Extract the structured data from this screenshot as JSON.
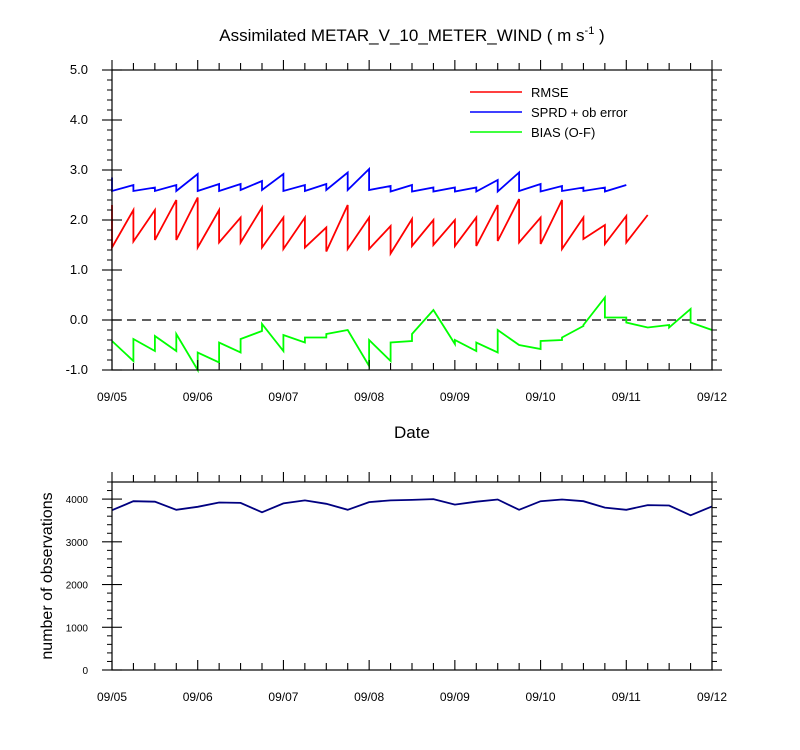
{
  "colors": {
    "rmse": "#ff0000",
    "sprd": "#0000ff",
    "bias": "#00ff00",
    "obs": "#000080",
    "axis": "#000000"
  },
  "chart_data": [
    {
      "type": "line",
      "title": "Assimilated METAR_V_10_METER_WIND ( m s",
      "title_sup": "-1",
      "title_end": " )",
      "xlabel": "Date",
      "ylabel": "",
      "ylim": [
        -1.0,
        5.0
      ],
      "xlim": [
        0,
        7
      ],
      "yticks": [
        -1.0,
        0.0,
        1.0,
        2.0,
        3.0,
        4.0,
        5.0
      ],
      "ytick_labels": [
        "-1.0",
        "0.0",
        "1.0",
        "2.0",
        "3.0",
        "4.0",
        "5.0"
      ],
      "xticks": [
        0,
        1,
        2,
        3,
        4,
        5,
        6,
        7
      ],
      "xtick_labels": [
        "09/05",
        "09/06",
        "09/07",
        "09/08",
        "09/09",
        "09/10",
        "09/11",
        "09/12"
      ],
      "legend": [
        "RMSE",
        "SPRD + ob error",
        "BIAS (O-F)"
      ],
      "legend_position": "top-right",
      "zero_line": 0.0,
      "series": [
        {
          "name": "RMSE",
          "color_key": "rmse",
          "points": [
            [
              0.0,
              2.3
            ],
            [
              0.0,
              1.45
            ],
            [
              0.25,
              2.2
            ],
            [
              0.25,
              1.57
            ],
            [
              0.5,
              2.2
            ],
            [
              0.5,
              1.6
            ],
            [
              0.75,
              2.4
            ],
            [
              0.75,
              1.6
            ],
            [
              1.0,
              2.45
            ],
            [
              1.0,
              1.45
            ],
            [
              1.25,
              2.2
            ],
            [
              1.25,
              1.55
            ],
            [
              1.5,
              2.05
            ],
            [
              1.5,
              1.55
            ],
            [
              1.75,
              2.25
            ],
            [
              1.75,
              1.45
            ],
            [
              2.0,
              2.05
            ],
            [
              2.0,
              1.42
            ],
            [
              2.25,
              2.05
            ],
            [
              2.25,
              1.45
            ],
            [
              2.5,
              1.85
            ],
            [
              2.5,
              1.37
            ],
            [
              2.75,
              2.3
            ],
            [
              2.75,
              1.42
            ],
            [
              3.0,
              2.05
            ],
            [
              3.0,
              1.42
            ],
            [
              3.25,
              1.88
            ],
            [
              3.25,
              1.33
            ],
            [
              3.5,
              2.02
            ],
            [
              3.5,
              1.48
            ],
            [
              3.75,
              2.0
            ],
            [
              3.75,
              1.5
            ],
            [
              4.0,
              2.0
            ],
            [
              4.0,
              1.48
            ],
            [
              4.25,
              2.05
            ],
            [
              4.25,
              1.48
            ],
            [
              4.5,
              2.3
            ],
            [
              4.5,
              1.58
            ],
            [
              4.75,
              2.42
            ],
            [
              4.75,
              1.55
            ],
            [
              5.0,
              2.05
            ],
            [
              5.0,
              1.52
            ],
            [
              5.25,
              2.4
            ],
            [
              5.25,
              1.42
            ],
            [
              5.5,
              2.05
            ],
            [
              5.5,
              1.62
            ],
            [
              5.75,
              1.9
            ],
            [
              5.75,
              1.52
            ],
            [
              6.0,
              2.08
            ],
            [
              6.0,
              1.55
            ],
            [
              6.25,
              2.1
            ]
          ]
        },
        {
          "name": "SPRD + ob error",
          "color_key": "sprd",
          "points": [
            [
              0.0,
              2.85
            ],
            [
              0.0,
              2.58
            ],
            [
              0.25,
              2.7
            ],
            [
              0.25,
              2.58
            ],
            [
              0.5,
              2.65
            ],
            [
              0.5,
              2.58
            ],
            [
              0.75,
              2.7
            ],
            [
              0.75,
              2.58
            ],
            [
              1.0,
              2.92
            ],
            [
              1.0,
              2.58
            ],
            [
              1.25,
              2.72
            ],
            [
              1.25,
              2.58
            ],
            [
              1.5,
              2.72
            ],
            [
              1.5,
              2.6
            ],
            [
              1.75,
              2.78
            ],
            [
              1.75,
              2.6
            ],
            [
              2.0,
              2.92
            ],
            [
              2.0,
              2.58
            ],
            [
              2.25,
              2.7
            ],
            [
              2.25,
              2.58
            ],
            [
              2.5,
              2.72
            ],
            [
              2.5,
              2.6
            ],
            [
              2.75,
              2.95
            ],
            [
              2.75,
              2.6
            ],
            [
              3.0,
              3.02
            ],
            [
              3.0,
              2.6
            ],
            [
              3.25,
              2.68
            ],
            [
              3.25,
              2.57
            ],
            [
              3.5,
              2.7
            ],
            [
              3.5,
              2.57
            ],
            [
              3.75,
              2.65
            ],
            [
              3.75,
              2.57
            ],
            [
              4.0,
              2.65
            ],
            [
              4.0,
              2.57
            ],
            [
              4.25,
              2.65
            ],
            [
              4.25,
              2.57
            ],
            [
              4.5,
              2.8
            ],
            [
              4.5,
              2.57
            ],
            [
              4.75,
              2.95
            ],
            [
              4.75,
              2.58
            ],
            [
              5.0,
              2.72
            ],
            [
              5.0,
              2.57
            ],
            [
              5.25,
              2.68
            ],
            [
              5.25,
              2.58
            ],
            [
              5.5,
              2.65
            ],
            [
              5.5,
              2.58
            ],
            [
              5.75,
              2.65
            ],
            [
              5.75,
              2.57
            ],
            [
              6.0,
              2.7
            ]
          ]
        },
        {
          "name": "BIAS (O-F)",
          "color_key": "bias",
          "points": [
            [
              0.0,
              -0.42
            ],
            [
              0.25,
              -0.82
            ],
            [
              0.25,
              -0.38
            ],
            [
              0.5,
              -0.62
            ],
            [
              0.5,
              -0.32
            ],
            [
              0.75,
              -0.62
            ],
            [
              0.75,
              -0.28
            ],
            [
              1.0,
              -1.0
            ],
            [
              1.0,
              -0.65
            ],
            [
              1.25,
              -0.85
            ],
            [
              1.25,
              -0.45
            ],
            [
              1.5,
              -0.65
            ],
            [
              1.5,
              -0.38
            ],
            [
              1.75,
              -0.22
            ],
            [
              1.75,
              -0.08
            ],
            [
              2.0,
              -0.62
            ],
            [
              2.0,
              -0.3
            ],
            [
              2.25,
              -0.45
            ],
            [
              2.25,
              -0.35
            ],
            [
              2.5,
              -0.35
            ],
            [
              2.5,
              -0.28
            ],
            [
              2.75,
              -0.2
            ],
            [
              3.0,
              -0.92
            ],
            [
              3.0,
              -0.4
            ],
            [
              3.25,
              -0.82
            ],
            [
              3.25,
              -0.45
            ],
            [
              3.5,
              -0.42
            ],
            [
              3.5,
              -0.28
            ],
            [
              3.75,
              0.2
            ],
            [
              4.0,
              -0.48
            ],
            [
              4.0,
              -0.4
            ],
            [
              4.25,
              -0.62
            ],
            [
              4.25,
              -0.45
            ],
            [
              4.5,
              -0.65
            ],
            [
              4.5,
              -0.2
            ],
            [
              4.75,
              -0.5
            ],
            [
              5.0,
              -0.58
            ],
            [
              5.0,
              -0.42
            ],
            [
              5.25,
              -0.4
            ],
            [
              5.25,
              -0.35
            ],
            [
              5.5,
              -0.12
            ],
            [
              5.5,
              -0.1
            ],
            [
              5.75,
              0.45
            ],
            [
              5.75,
              0.05
            ],
            [
              6.0,
              0.05
            ],
            [
              6.0,
              -0.05
            ],
            [
              6.25,
              -0.15
            ],
            [
              6.5,
              -0.1
            ],
            [
              6.5,
              -0.15
            ],
            [
              6.75,
              0.22
            ],
            [
              6.75,
              -0.05
            ],
            [
              7.0,
              -0.2
            ]
          ]
        }
      ]
    },
    {
      "type": "line",
      "title": "",
      "xlabel": "",
      "ylabel": "number of observations",
      "ylim": [
        0,
        4400
      ],
      "xlim": [
        0,
        7
      ],
      "yticks": [
        0,
        1000,
        2000,
        3000,
        4000
      ],
      "ytick_labels": [
        "0",
        "1000",
        "2000",
        "3000",
        "4000"
      ],
      "xticks": [
        0,
        1,
        2,
        3,
        4,
        5,
        6,
        7
      ],
      "xtick_labels": [
        "09/05",
        "09/06",
        "09/07",
        "09/08",
        "09/09",
        "09/10",
        "09/11",
        "09/12"
      ],
      "series": [
        {
          "name": "number of observations",
          "color_key": "obs",
          "points": [
            [
              0.0,
              3740
            ],
            [
              0.25,
              3950
            ],
            [
              0.5,
              3940
            ],
            [
              0.75,
              3750
            ],
            [
              1.0,
              3820
            ],
            [
              1.25,
              3920
            ],
            [
              1.5,
              3910
            ],
            [
              1.75,
              3690
            ],
            [
              2.0,
              3900
            ],
            [
              2.25,
              3970
            ],
            [
              2.5,
              3890
            ],
            [
              2.75,
              3750
            ],
            [
              3.0,
              3930
            ],
            [
              3.25,
              3970
            ],
            [
              3.5,
              3980
            ],
            [
              3.75,
              4000
            ],
            [
              4.0,
              3870
            ],
            [
              4.25,
              3940
            ],
            [
              4.5,
              3990
            ],
            [
              4.75,
              3750
            ],
            [
              5.0,
              3950
            ],
            [
              5.25,
              3990
            ],
            [
              5.5,
              3950
            ],
            [
              5.75,
              3800
            ],
            [
              6.0,
              3750
            ],
            [
              6.25,
              3860
            ],
            [
              6.5,
              3850
            ],
            [
              6.75,
              3620
            ],
            [
              7.0,
              3830
            ]
          ]
        }
      ]
    }
  ]
}
